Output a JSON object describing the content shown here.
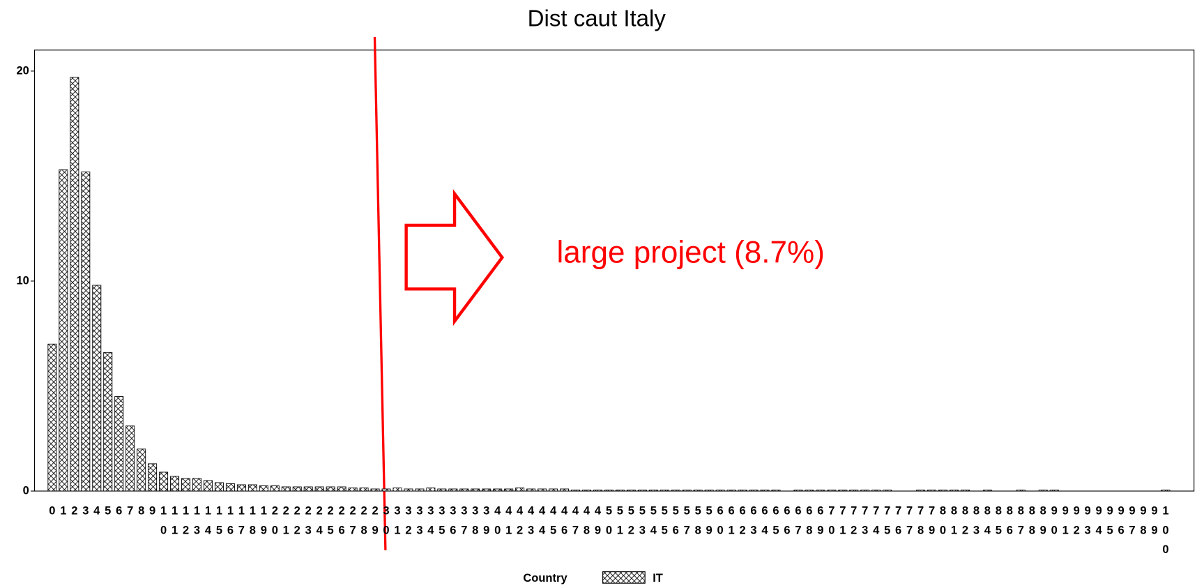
{
  "chart_data": {
    "type": "bar",
    "title": "Dist caut Italy",
    "categories": [
      "0",
      "1",
      "2",
      "3",
      "4",
      "5",
      "6",
      "7",
      "8",
      "9",
      "10",
      "11",
      "12",
      "13",
      "14",
      "15",
      "16",
      "17",
      "18",
      "19",
      "20",
      "21",
      "22",
      "23",
      "24",
      "25",
      "26",
      "27",
      "28",
      "29",
      "30",
      "31",
      "32",
      "33",
      "34",
      "35",
      "36",
      "37",
      "38",
      "39",
      "40",
      "41",
      "42",
      "43",
      "44",
      "45",
      "46",
      "47",
      "48",
      "49",
      "50",
      "51",
      "52",
      "53",
      "54",
      "55",
      "56",
      "57",
      "58",
      "59",
      "60",
      "61",
      "62",
      "63",
      "64",
      "65",
      "66",
      "67",
      "68",
      "69",
      "70",
      "71",
      "72",
      "73",
      "74",
      "75",
      "76",
      "77",
      "78",
      "79",
      "80",
      "81",
      "82",
      "83",
      "84",
      "85",
      "86",
      "87",
      "88",
      "89",
      "90",
      "91",
      "92",
      "93",
      "94",
      "95",
      "96",
      "97",
      "98",
      "99",
      "100"
    ],
    "values": [
      7.0,
      15.3,
      19.7,
      15.2,
      9.8,
      6.6,
      4.5,
      3.1,
      2.0,
      1.3,
      0.9,
      0.7,
      0.6,
      0.6,
      0.5,
      0.4,
      0.35,
      0.3,
      0.3,
      0.25,
      0.25,
      0.2,
      0.2,
      0.2,
      0.2,
      0.2,
      0.2,
      0.15,
      0.15,
      0.1,
      0.1,
      0.15,
      0.1,
      0.1,
      0.15,
      0.1,
      0.1,
      0.1,
      0.1,
      0.1,
      0.1,
      0.1,
      0.15,
      0.1,
      0.1,
      0.1,
      0.1,
      0.05,
      0.05,
      0.05,
      0.05,
      0.05,
      0.05,
      0.05,
      0.05,
      0.05,
      0.05,
      0.05,
      0.05,
      0.05,
      0.05,
      0.05,
      0.05,
      0.05,
      0.05,
      0.05,
      0,
      0.05,
      0.05,
      0.05,
      0.05,
      0.05,
      0.05,
      0.05,
      0.05,
      0.05,
      0,
      0,
      0.05,
      0.05,
      0.05,
      0.05,
      0.05,
      0,
      0.05,
      0,
      0,
      0.05,
      0,
      0.05,
      0.05,
      0,
      0,
      0,
      0,
      0,
      0,
      0,
      0,
      0,
      0.05
    ],
    "ylim": [
      0,
      21
    ],
    "yticks": [
      0,
      10,
      20
    ],
    "legend_title": "Country",
    "series_name": "IT",
    "annotation": "large project (8.7%)",
    "annotation_color": "#ff0000",
    "color": "#000000"
  }
}
